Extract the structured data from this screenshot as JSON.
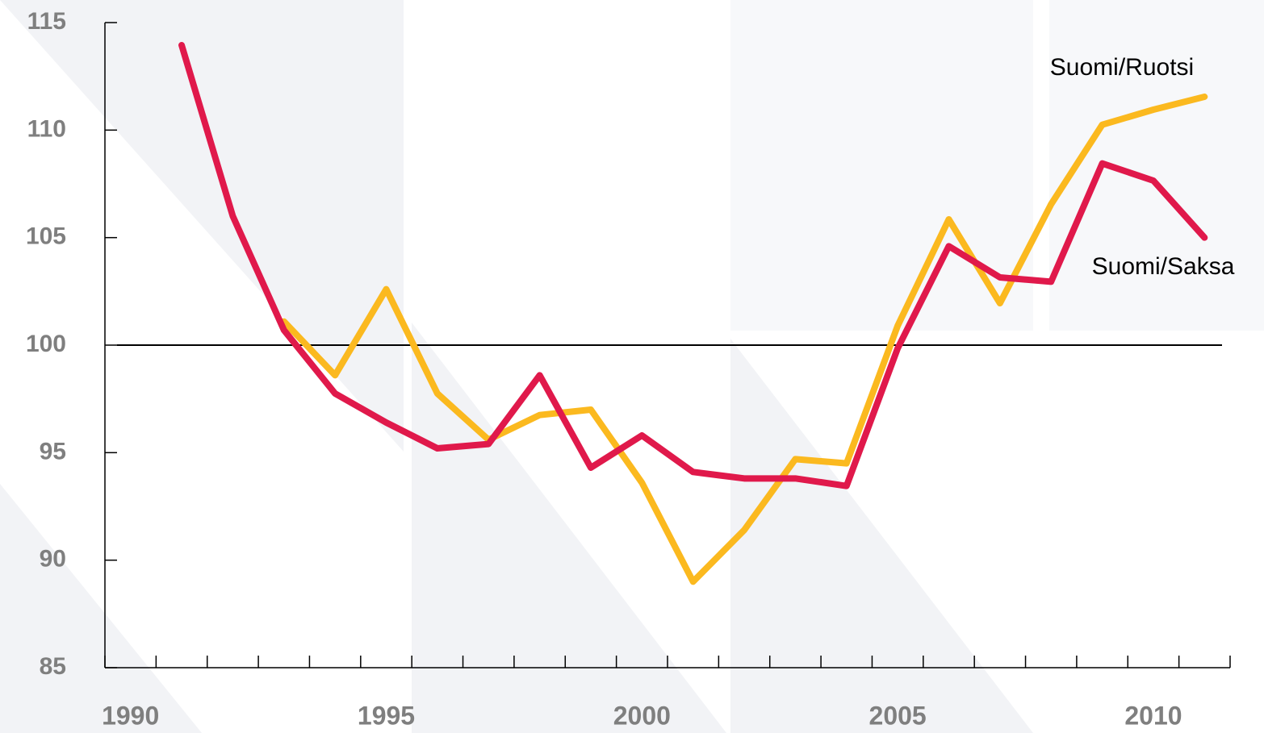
{
  "chart_data": {
    "type": "line",
    "categories": [
      "1990",
      null,
      null,
      null,
      null,
      "1995",
      null,
      null,
      null,
      null,
      "2000",
      null,
      null,
      null,
      null,
      "2005",
      null,
      null,
      null,
      null,
      "2010",
      null
    ],
    "series": [
      {
        "name": "Suomi/Ruotsi",
        "color": "#fbb91f",
        "values": [
          null,
          null,
          null,
          101.1,
          98.6,
          102.6,
          97.75,
          95.6,
          96.75,
          97.0,
          93.6,
          89.0,
          91.4,
          94.7,
          94.5,
          100.9,
          105.85,
          101.95,
          106.55,
          110.25,
          110.95,
          111.55
        ]
      },
      {
        "name": "Suomi/Saksa",
        "color": "#e0194b",
        "values": [
          null,
          113.95,
          106.0,
          100.7,
          97.75,
          96.4,
          95.2,
          95.4,
          98.6,
          94.3,
          95.8,
          94.1,
          93.8,
          93.8,
          93.45,
          99.85,
          104.6,
          103.15,
          102.95,
          108.45,
          107.65,
          105.0
        ]
      }
    ],
    "ylim": [
      85,
      115
    ],
    "yticks": [
      85,
      90,
      95,
      100,
      105,
      110,
      115
    ],
    "reference_line": 100
  }
}
